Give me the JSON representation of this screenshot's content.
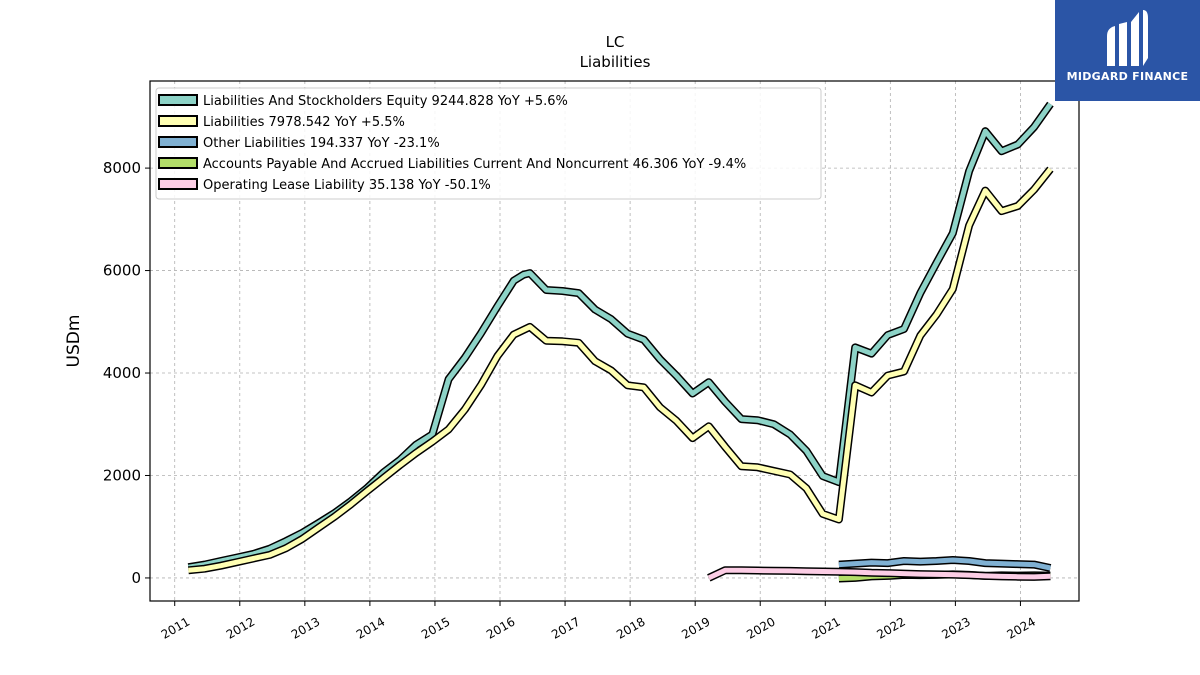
{
  "brand": {
    "name": "MIDGARD FINANCE",
    "bg_color": "#2b55a6",
    "icon": "midgard-m-icon"
  },
  "chart_data": {
    "type": "line",
    "title": "LC",
    "subtitle": "Liabilities",
    "ylabel": "USDm",
    "xlabel": "",
    "xlim": [
      2010.62,
      2024.9
    ],
    "ylim": [
      -450,
      9700
    ],
    "yticks": [
      0,
      2000,
      4000,
      6000,
      8000
    ],
    "xticks": [
      2011,
      2012,
      2013,
      2014,
      2015,
      2016,
      2017,
      2018,
      2019,
      2020,
      2021,
      2022,
      2023,
      2024
    ],
    "grid": true,
    "legend_position": "top-left",
    "series": [
      {
        "name": "Liabilities And Stockholders Equity",
        "label": "Liabilities And Stockholders Equity  9244.828 YoY +5.6%",
        "color": "#8dd3c7",
        "points": [
          [
            2011.21,
            210
          ],
          [
            2011.46,
            260
          ],
          [
            2011.71,
            330
          ],
          [
            2011.96,
            400
          ],
          [
            2012.21,
            470
          ],
          [
            2012.46,
            570
          ],
          [
            2012.71,
            720
          ],
          [
            2012.96,
            880
          ],
          [
            2013.21,
            1070
          ],
          [
            2013.46,
            1270
          ],
          [
            2013.71,
            1500
          ],
          [
            2013.96,
            1760
          ],
          [
            2014.21,
            2060
          ],
          [
            2014.46,
            2300
          ],
          [
            2014.71,
            2600
          ],
          [
            2014.96,
            2800
          ],
          [
            2015.21,
            3880
          ],
          [
            2015.46,
            4300
          ],
          [
            2015.71,
            4780
          ],
          [
            2015.96,
            5300
          ],
          [
            2016.21,
            5800
          ],
          [
            2016.36,
            5920
          ],
          [
            2016.46,
            5950
          ],
          [
            2016.71,
            5620
          ],
          [
            2016.96,
            5600
          ],
          [
            2017.21,
            5560
          ],
          [
            2017.46,
            5240
          ],
          [
            2017.71,
            5050
          ],
          [
            2017.96,
            4770
          ],
          [
            2018.21,
            4650
          ],
          [
            2018.46,
            4270
          ],
          [
            2018.71,
            3950
          ],
          [
            2018.96,
            3600
          ],
          [
            2019.21,
            3820
          ],
          [
            2019.46,
            3440
          ],
          [
            2019.71,
            3100
          ],
          [
            2019.96,
            3080
          ],
          [
            2020.21,
            3000
          ],
          [
            2020.46,
            2800
          ],
          [
            2020.71,
            2480
          ],
          [
            2020.96,
            1990
          ],
          [
            2021.21,
            1870
          ],
          [
            2021.46,
            4500
          ],
          [
            2021.71,
            4380
          ],
          [
            2021.96,
            4740
          ],
          [
            2022.21,
            4860
          ],
          [
            2022.46,
            5560
          ],
          [
            2022.71,
            6150
          ],
          [
            2022.96,
            6730
          ],
          [
            2023.21,
            7940
          ],
          [
            2023.46,
            8720
          ],
          [
            2023.71,
            8330
          ],
          [
            2023.96,
            8460
          ],
          [
            2024.21,
            8800
          ],
          [
            2024.46,
            9250
          ]
        ]
      },
      {
        "name": "Liabilities",
        "label": "Liabilities  7978.542 YoY +5.5%",
        "color": "#ffffb3",
        "points": [
          [
            2011.21,
            150
          ],
          [
            2011.46,
            180
          ],
          [
            2011.71,
            240
          ],
          [
            2011.96,
            310
          ],
          [
            2012.21,
            380
          ],
          [
            2012.46,
            450
          ],
          [
            2012.71,
            580
          ],
          [
            2012.96,
            760
          ],
          [
            2013.21,
            980
          ],
          [
            2013.46,
            1200
          ],
          [
            2013.71,
            1440
          ],
          [
            2013.96,
            1700
          ],
          [
            2014.21,
            1950
          ],
          [
            2014.46,
            2200
          ],
          [
            2014.71,
            2440
          ],
          [
            2014.96,
            2660
          ],
          [
            2015.21,
            2900
          ],
          [
            2015.46,
            3290
          ],
          [
            2015.71,
            3770
          ],
          [
            2015.96,
            4330
          ],
          [
            2016.21,
            4750
          ],
          [
            2016.46,
            4900
          ],
          [
            2016.71,
            4630
          ],
          [
            2016.96,
            4620
          ],
          [
            2017.21,
            4590
          ],
          [
            2017.46,
            4230
          ],
          [
            2017.71,
            4050
          ],
          [
            2017.96,
            3760
          ],
          [
            2018.21,
            3720
          ],
          [
            2018.46,
            3330
          ],
          [
            2018.71,
            3070
          ],
          [
            2018.96,
            2730
          ],
          [
            2019.21,
            2960
          ],
          [
            2019.46,
            2560
          ],
          [
            2019.71,
            2180
          ],
          [
            2019.96,
            2160
          ],
          [
            2020.21,
            2090
          ],
          [
            2020.46,
            2020
          ],
          [
            2020.71,
            1750
          ],
          [
            2020.96,
            1250
          ],
          [
            2021.21,
            1140
          ],
          [
            2021.46,
            3760
          ],
          [
            2021.71,
            3620
          ],
          [
            2021.96,
            3950
          ],
          [
            2022.21,
            4030
          ],
          [
            2022.46,
            4730
          ],
          [
            2022.71,
            5140
          ],
          [
            2022.96,
            5640
          ],
          [
            2023.21,
            6880
          ],
          [
            2023.46,
            7560
          ],
          [
            2023.71,
            7160
          ],
          [
            2023.96,
            7260
          ],
          [
            2024.21,
            7580
          ],
          [
            2024.46,
            7980
          ]
        ]
      },
      {
        "name": "Other Liabilities",
        "label": "Other Liabilities  194.337 YoY -23.1%",
        "color": "#80b1d3",
        "points": [
          [
            2021.21,
            260
          ],
          [
            2021.46,
            280
          ],
          [
            2021.71,
            300
          ],
          [
            2021.96,
            290
          ],
          [
            2022.21,
            330
          ],
          [
            2022.46,
            320
          ],
          [
            2022.71,
            330
          ],
          [
            2022.96,
            350
          ],
          [
            2023.21,
            330
          ],
          [
            2023.46,
            290
          ],
          [
            2023.71,
            280
          ],
          [
            2023.96,
            270
          ],
          [
            2024.21,
            260
          ],
          [
            2024.46,
            195
          ]
        ]
      },
      {
        "name": "Accounts Payable And Accrued Liabilities Current And Noncurrent",
        "label": "Accounts Payable And Accrued Liabilities Current And Noncurrent  46.306 YoY -9.4%",
        "color": "#b3de69",
        "points": [
          [
            2021.21,
            -10
          ],
          [
            2021.46,
            0
          ],
          [
            2021.71,
            30
          ],
          [
            2021.96,
            40
          ],
          [
            2022.21,
            60
          ],
          [
            2022.46,
            55
          ],
          [
            2022.71,
            60
          ],
          [
            2022.96,
            70
          ],
          [
            2023.21,
            60
          ],
          [
            2023.46,
            40
          ],
          [
            2023.71,
            50
          ],
          [
            2023.96,
            45
          ],
          [
            2024.21,
            50
          ],
          [
            2024.46,
            46
          ]
        ]
      },
      {
        "name": "Operating Lease Liability",
        "label": "Operating Lease Liability  35.138 YoY -50.1%",
        "color": "#fccde5",
        "points": [
          [
            2019.21,
            0
          ],
          [
            2019.46,
            150
          ],
          [
            2019.71,
            150
          ],
          [
            2019.96,
            145
          ],
          [
            2020.21,
            140
          ],
          [
            2020.46,
            138
          ],
          [
            2020.71,
            130
          ],
          [
            2020.96,
            125
          ],
          [
            2021.21,
            120
          ],
          [
            2021.46,
            115
          ],
          [
            2021.71,
            100
          ],
          [
            2021.96,
            95
          ],
          [
            2022.21,
            85
          ],
          [
            2022.46,
            75
          ],
          [
            2022.71,
            70
          ],
          [
            2022.96,
            65
          ],
          [
            2023.21,
            55
          ],
          [
            2023.46,
            40
          ],
          [
            2023.71,
            30
          ],
          [
            2023.96,
            25
          ],
          [
            2024.21,
            20
          ],
          [
            2024.46,
            35
          ]
        ]
      }
    ]
  }
}
